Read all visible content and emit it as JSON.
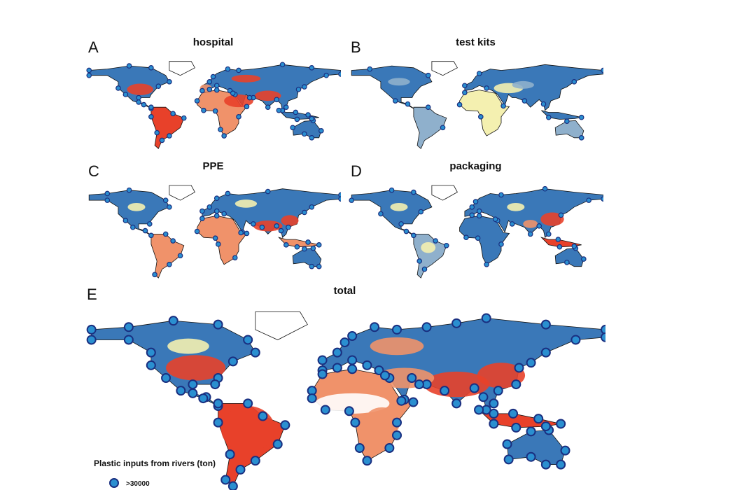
{
  "panels": [
    {
      "letter": "A",
      "title": "hospital"
    },
    {
      "letter": "B",
      "title": "test kits"
    },
    {
      "letter": "C",
      "title": "PPE"
    },
    {
      "letter": "D",
      "title": "packaging"
    },
    {
      "letter": "E",
      "title": "total"
    }
  ],
  "legend": {
    "title": "Plastic inputs from rivers (ton)",
    "items": [
      ">30000"
    ]
  }
}
